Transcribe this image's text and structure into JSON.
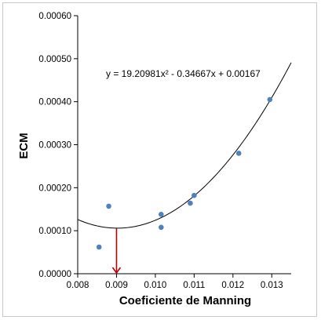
{
  "chart_data": {
    "type": "scatter",
    "xlabel": "Coeficiente de Manning",
    "ylabel": "ECM",
    "xlim": [
      0.008,
      0.0135
    ],
    "ylim": [
      0.0,
      0.0006
    ],
    "x_ticks": [
      "0.008",
      "0.009",
      "0.010",
      "0.011",
      "0.012",
      "0.013"
    ],
    "y_ticks": [
      "0.00000",
      "0.00010",
      "0.00020",
      "0.00030",
      "0.00040",
      "0.00050",
      "0.00060"
    ],
    "x_tick_values": [
      0.008,
      0.009,
      0.01,
      0.011,
      0.012,
      0.013
    ],
    "y_tick_values": [
      0.0,
      0.0001,
      0.0002,
      0.0003,
      0.0004,
      0.0005,
      0.0006
    ],
    "points": {
      "x": [
        0.00855,
        0.0088,
        0.01015,
        0.01015,
        0.0109,
        0.011,
        0.01215,
        0.01295
      ],
      "y": [
        6.2e-05,
        0.000157,
        0.000108,
        0.000138,
        0.000164,
        0.000182,
        0.00028,
        0.000405
      ]
    },
    "trendline": {
      "equation": "y = 19.20981x² - 0.34667x + 0.00167",
      "a": 19.20981,
      "b": -0.34667,
      "c": 0.00167
    },
    "annotation": {
      "type": "arrow",
      "x": 0.009,
      "y_from": 0.000105,
      "y_to": 0.0
    },
    "grid": false,
    "colors": {
      "points": "#4f81bd",
      "trendline": "#000000",
      "arrow": "#c00000"
    }
  }
}
